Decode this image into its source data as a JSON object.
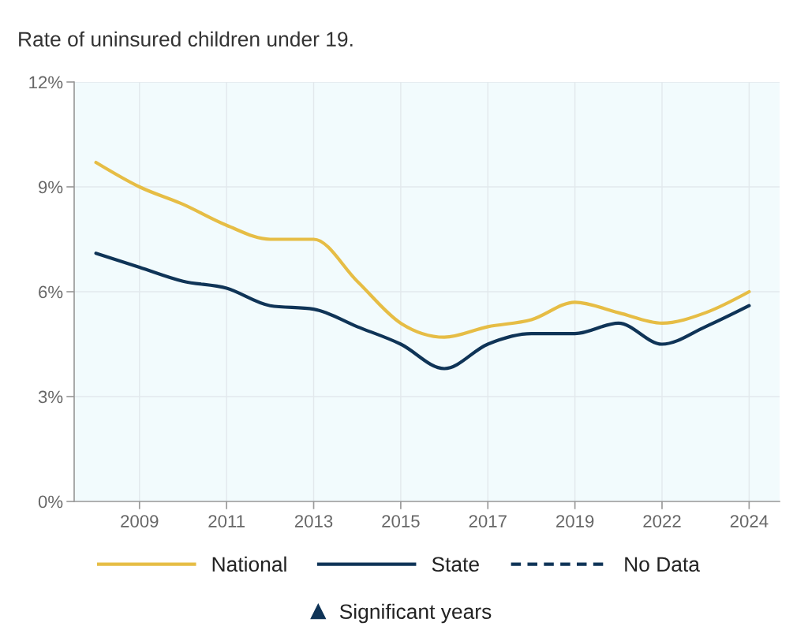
{
  "chart_data": {
    "type": "line",
    "title": "Rate of uninsured children under 19.",
    "categories": [
      null,
      "2009",
      null,
      "2011",
      null,
      "2013",
      null,
      "2015",
      null,
      "2017",
      null,
      "2019",
      null,
      "2022",
      null,
      "2024"
    ],
    "series": [
      {
        "name": "National",
        "color": "#e6bd45",
        "values": [
          9.7,
          9.0,
          8.5,
          7.9,
          7.5,
          7.5,
          6.3,
          5.1,
          4.7,
          5.0,
          5.2,
          5.7,
          5.4,
          5.1,
          5.4,
          6.0
        ]
      },
      {
        "name": "State",
        "color": "#0f3457",
        "values": [
          7.1,
          6.7,
          6.3,
          6.1,
          5.6,
          5.5,
          5.0,
          4.5,
          3.8,
          4.5,
          4.8,
          4.8,
          5.1,
          4.5,
          5.0,
          5.6
        ]
      },
      {
        "name": "No Data",
        "color": "#0f3457",
        "line_style": "dashed",
        "values": [
          null,
          null,
          null,
          null,
          null,
          null,
          null,
          null,
          null,
          null,
          null,
          null,
          null,
          null,
          null,
          null
        ]
      },
      {
        "name": "Significant years",
        "type": "scatter",
        "marker": "triangle",
        "color": "#0f3457",
        "values": [
          null,
          null,
          null,
          null,
          null,
          null,
          null,
          null,
          null,
          null,
          null,
          null,
          null,
          null,
          null,
          null
        ]
      }
    ],
    "ylim": [
      0,
      12
    ],
    "yticks": [
      {
        "value": 0,
        "label": "0%"
      },
      {
        "value": 3,
        "label": "3%"
      },
      {
        "value": 6,
        "label": "6%"
      },
      {
        "value": 9,
        "label": "9%"
      },
      {
        "value": 12,
        "label": "12%"
      }
    ],
    "grid": true,
    "legend": "bottom"
  }
}
